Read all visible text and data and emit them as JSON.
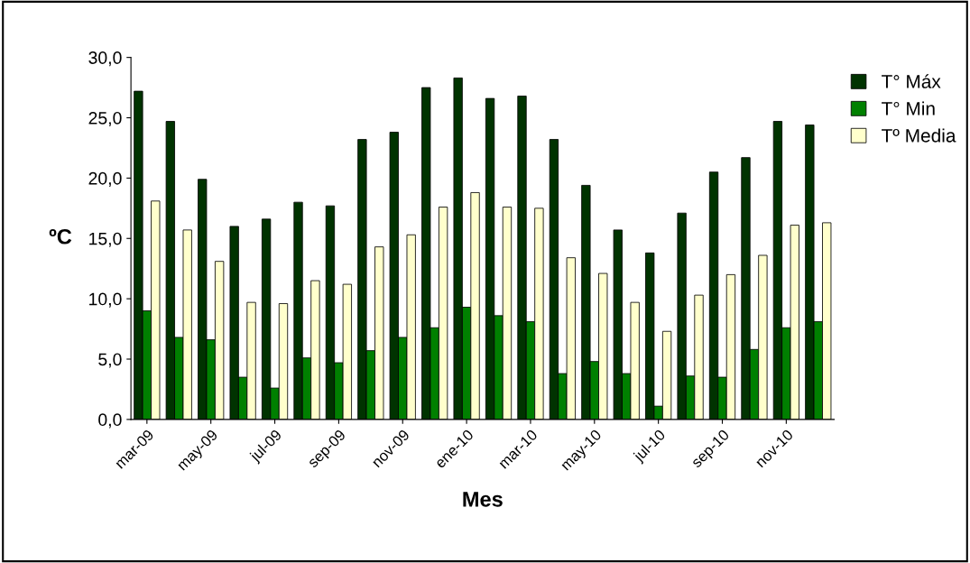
{
  "chart_data": {
    "type": "bar",
    "xlabel": "Mes",
    "ylabel": "ºC",
    "categories": [
      "mar-09",
      null,
      "may-09",
      null,
      "jul-09",
      null,
      "sep-09",
      null,
      "nov-09",
      null,
      "ene-10",
      null,
      "mar-10",
      null,
      "may-10",
      null,
      "jul-10",
      null,
      "sep-10",
      null,
      "nov-10",
      null
    ],
    "series": [
      {
        "name": "T° Máx",
        "color": "#003300",
        "values": [
          27.2,
          24.7,
          19.9,
          16.0,
          16.6,
          18.0,
          17.7,
          23.2,
          23.8,
          27.5,
          28.3,
          26.6,
          26.8,
          23.2,
          19.4,
          15.7,
          13.8,
          17.1,
          20.5,
          21.7,
          24.7,
          24.4
        ]
      },
      {
        "name": "T° Min",
        "color": "#008000",
        "values": [
          9.0,
          6.8,
          6.6,
          3.5,
          2.6,
          5.1,
          4.7,
          5.7,
          6.8,
          7.6,
          9.3,
          8.6,
          8.1,
          3.8,
          4.8,
          3.8,
          1.1,
          3.6,
          3.5,
          5.8,
          7.6,
          8.1
        ]
      },
      {
        "name": "Tº Media",
        "color": "#ffffcc",
        "values": [
          18.1,
          15.7,
          13.1,
          9.7,
          9.6,
          11.5,
          11.2,
          14.3,
          15.3,
          17.6,
          18.8,
          17.6,
          17.5,
          13.4,
          12.1,
          9.7,
          7.3,
          10.3,
          12.0,
          13.6,
          16.1,
          16.3
        ]
      }
    ],
    "ylim": [
      0,
      30
    ],
    "yticks": [
      {
        "value": 0,
        "label": "0,0"
      },
      {
        "value": 5,
        "label": "5,0"
      },
      {
        "value": 10,
        "label": "10,0"
      },
      {
        "value": 15,
        "label": "15,0"
      },
      {
        "value": 20,
        "label": "20,0"
      },
      {
        "value": 25,
        "label": "25,0"
      },
      {
        "value": 30,
        "label": "30,0"
      }
    ],
    "grid": false,
    "legend": "right"
  }
}
